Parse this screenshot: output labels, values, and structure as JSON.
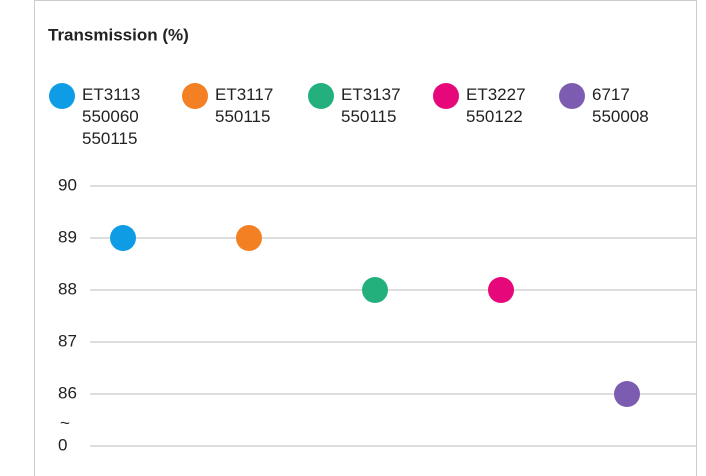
{
  "chart_data": {
    "type": "scatter",
    "title": "Transmission (%)",
    "series": [
      {
        "name": "ET3113\n550060\n550115",
        "color": "#0e9de5",
        "values": [
          89
        ]
      },
      {
        "name": "ET3117\n550115",
        "color": "#f48024",
        "values": [
          89
        ]
      },
      {
        "name": "ET3137\n550115",
        "color": "#23b07d",
        "values": [
          88
        ]
      },
      {
        "name": "ET3227\n550122",
        "color": "#e6077a",
        "values": [
          88
        ]
      },
      {
        "name": "6717\n550008",
        "color": "#7c5cb0",
        "values": [
          86
        ]
      }
    ],
    "ylim": [
      0,
      90
    ],
    "yticks": [
      0,
      86,
      87,
      88,
      89,
      90
    ],
    "axis_break": {
      "range": [
        0,
        86
      ],
      "label": "~"
    },
    "grid": true
  }
}
